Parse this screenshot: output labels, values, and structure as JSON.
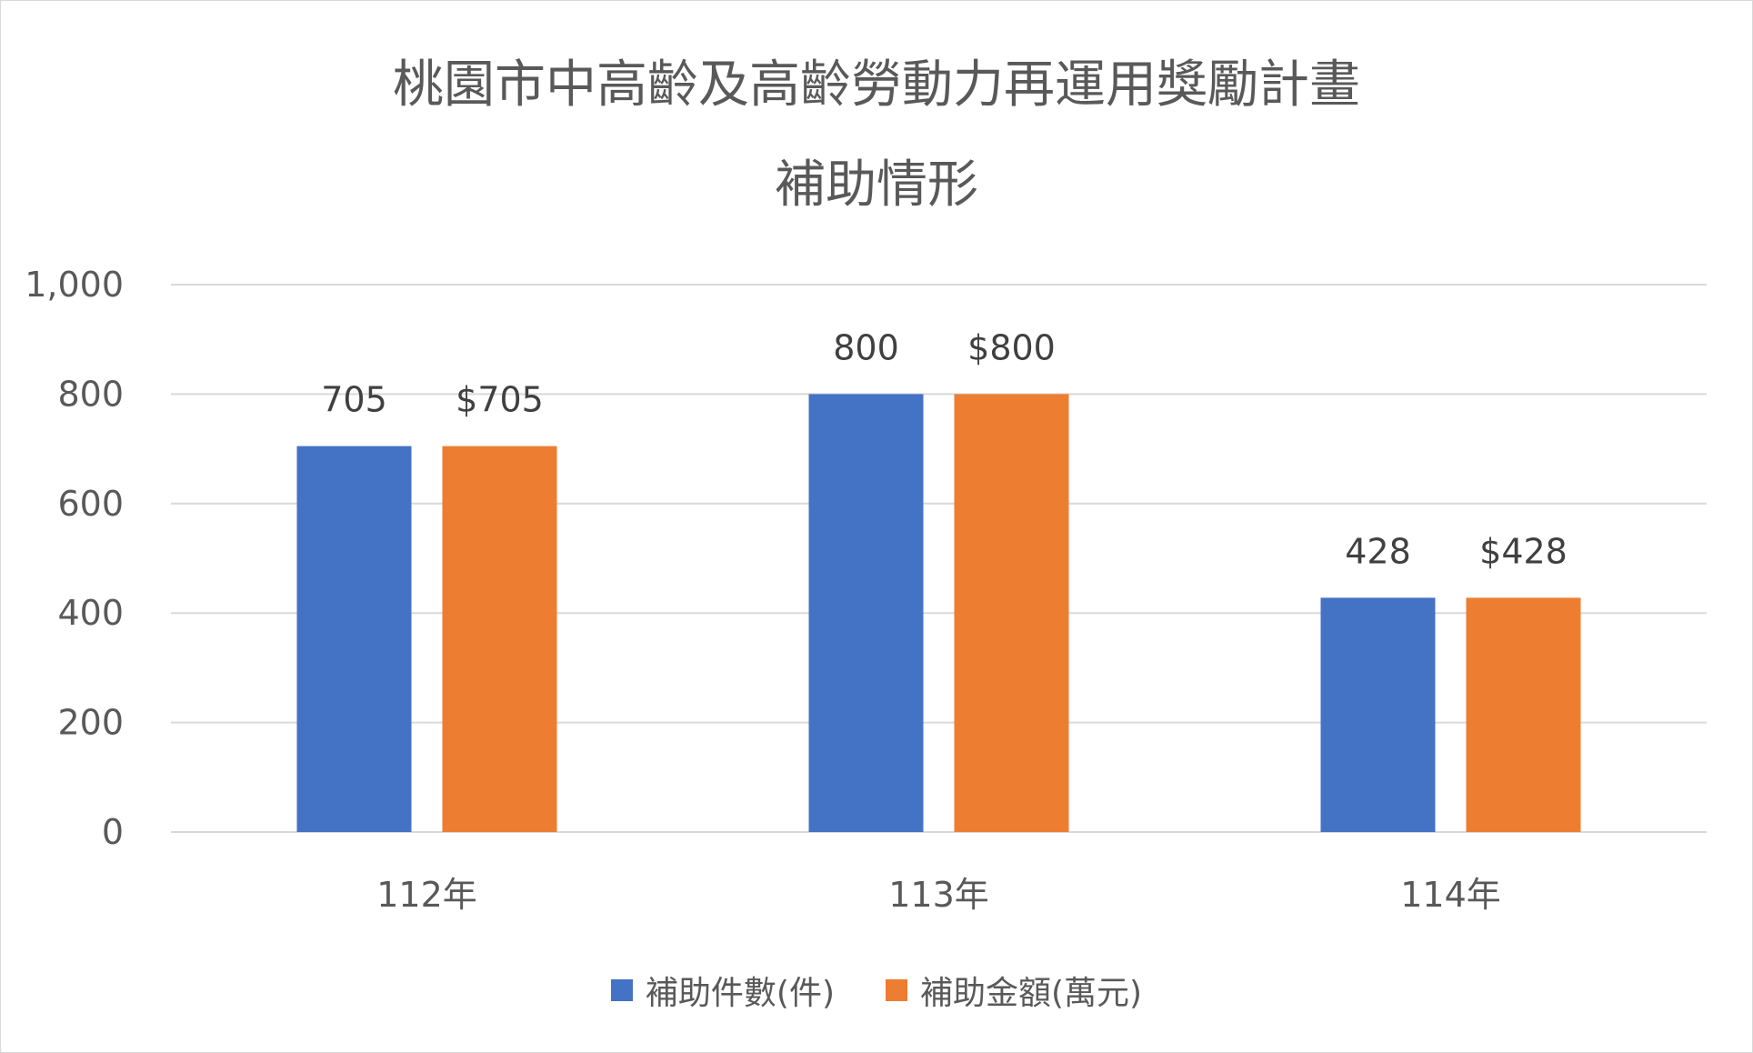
{
  "chart_data": {
    "type": "bar",
    "title": "桃園市中高齡及高齡勞動力再運用獎勵計畫",
    "subtitle": "補助情形",
    "categories": [
      "112年",
      "113年",
      "114年"
    ],
    "series": [
      {
        "name": "補助件數(件)",
        "values": [
          705,
          800,
          428
        ],
        "color": "#4472c4",
        "labels": [
          "705",
          "800",
          "428"
        ]
      },
      {
        "name": "補助金額(萬元)",
        "values": [
          705,
          800,
          428
        ],
        "color": "#ed7d31",
        "labels": [
          "$705",
          "$800",
          "$428"
        ]
      }
    ],
    "yticks": [
      "0",
      "200",
      "400",
      "600",
      "800",
      "1,000"
    ],
    "ylim": [
      0,
      1000
    ],
    "grid": true,
    "legend_position": "bottom",
    "data_labels": true
  }
}
